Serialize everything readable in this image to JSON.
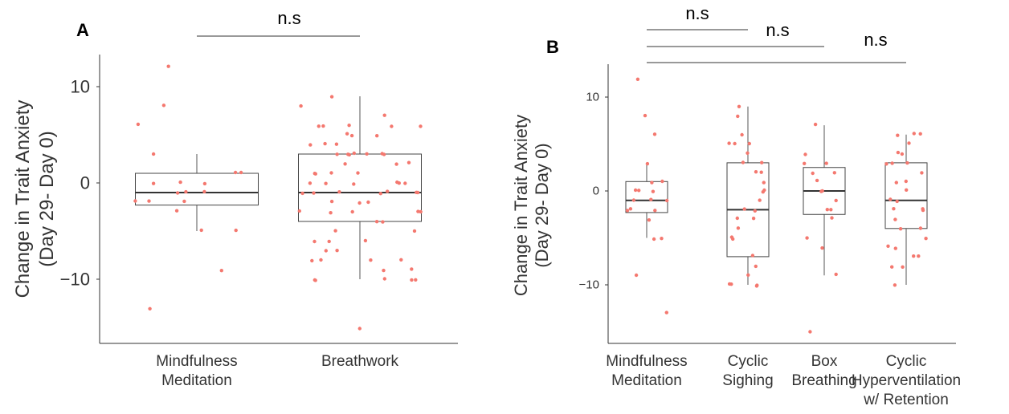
{
  "chart_data": [
    {
      "panel": "A",
      "type": "box",
      "ylabel_lines": [
        "Change in Trait Anxiety",
        "(Day 29- Day 0)"
      ],
      "yticks": [
        10,
        0,
        -10
      ],
      "ytick_labels": [
        "10",
        "0",
        "−10"
      ],
      "ylim": [
        -16.5,
        13.5
      ],
      "categories": [
        {
          "lines": [
            "Mindfulness",
            "Meditation"
          ]
        },
        {
          "lines": [
            "Breathwork"
          ]
        }
      ],
      "boxes": [
        {
          "q1": -2.3,
          "median": -1,
          "q3": 1,
          "whisker_low": -5,
          "whisker_high": 3
        },
        {
          "q1": -4,
          "median": -1,
          "q3": 3,
          "whisker_low": -10,
          "whisker_high": 9
        }
      ],
      "points": [
        [
          12,
          8,
          6,
          3,
          1,
          1,
          0,
          0,
          0,
          -1,
          -1,
          -1,
          -2,
          -2,
          -2,
          -3,
          -5,
          -5,
          -9,
          -13
        ],
        [
          9,
          8,
          7,
          6,
          6,
          6,
          6,
          6,
          5,
          5,
          5,
          4,
          4,
          4,
          3,
          3,
          3,
          3,
          3,
          3,
          3,
          2,
          2,
          2,
          1,
          1,
          1,
          1,
          0,
          0,
          0,
          0,
          0,
          0,
          -1,
          -1,
          -1,
          -1,
          -1,
          -1,
          -1,
          -2,
          -2,
          -2,
          -3,
          -3,
          -3,
          -3,
          -3,
          -4,
          -4,
          -5,
          -5,
          -6,
          -6,
          -6,
          -7,
          -7,
          -8,
          -8,
          -8,
          -8,
          -9,
          -9,
          -10,
          -10,
          -10,
          -10,
          -10,
          -15
        ]
      ],
      "comparisons": [
        {
          "label": "n.s",
          "from": 0,
          "to": 1
        }
      ]
    },
    {
      "panel": "B",
      "type": "box",
      "ylabel_lines": [
        "Change in Trait Anxiety",
        "(Day 29- Day 0)"
      ],
      "yticks": [
        10,
        0,
        -10
      ],
      "ytick_labels": [
        "10",
        "0",
        "−10"
      ],
      "ylim": [
        -16.5,
        13.5
      ],
      "categories": [
        {
          "lines": [
            "Mindfulness",
            "Meditation"
          ]
        },
        {
          "lines": [
            "Cyclic",
            "Sighing"
          ]
        },
        {
          "lines": [
            "Box",
            "Breathing"
          ]
        },
        {
          "lines": [
            "Cyclic",
            "Hyperventilation",
            "w/ Retention"
          ]
        }
      ],
      "boxes": [
        {
          "q1": -2.3,
          "median": -1,
          "q3": 1,
          "whisker_low": -5,
          "whisker_high": 3
        },
        {
          "q1": -7,
          "median": -2,
          "q3": 3,
          "whisker_low": -10,
          "whisker_high": 9
        },
        {
          "q1": -2.5,
          "median": 0,
          "q3": 2.5,
          "whisker_low": -9,
          "whisker_high": 7
        },
        {
          "q1": -4,
          "median": -1,
          "q3": 3,
          "whisker_low": -10,
          "whisker_high": 6
        }
      ],
      "points": [
        [
          12,
          8,
          6,
          3,
          1,
          1,
          0,
          0,
          0,
          -1,
          -1,
          -1,
          -2,
          -2,
          -2,
          -3,
          -5,
          -5,
          -9,
          -13
        ],
        [
          9,
          8,
          6,
          5,
          5,
          5,
          4,
          3,
          3,
          2,
          2,
          1,
          0,
          0,
          -1,
          -2,
          -2,
          -3,
          -3,
          -4,
          -5,
          -5,
          -7,
          -8,
          -9,
          -10,
          -10,
          -10,
          -10
        ],
        [
          7,
          4,
          3,
          3,
          2,
          2,
          1,
          0,
          0,
          -1,
          -2,
          -2,
          -3,
          -5,
          -6,
          -9,
          -15
        ],
        [
          6,
          6,
          6,
          5,
          4,
          4,
          3,
          3,
          3,
          2,
          1,
          1,
          0,
          -1,
          -1,
          -2,
          -2,
          -2,
          -3,
          -4,
          -4,
          -5,
          -6,
          -6,
          -7,
          -7,
          -8,
          -8,
          -10
        ]
      ],
      "comparisons": [
        {
          "label": "n.s",
          "from": 0,
          "to": 1
        },
        {
          "label": "n.s",
          "from": 0,
          "to": 2
        },
        {
          "label": "n.s",
          "from": 0,
          "to": 3
        }
      ]
    }
  ],
  "colors": {
    "points": "#f4786f",
    "axis": "#333333",
    "box": "#444444"
  }
}
